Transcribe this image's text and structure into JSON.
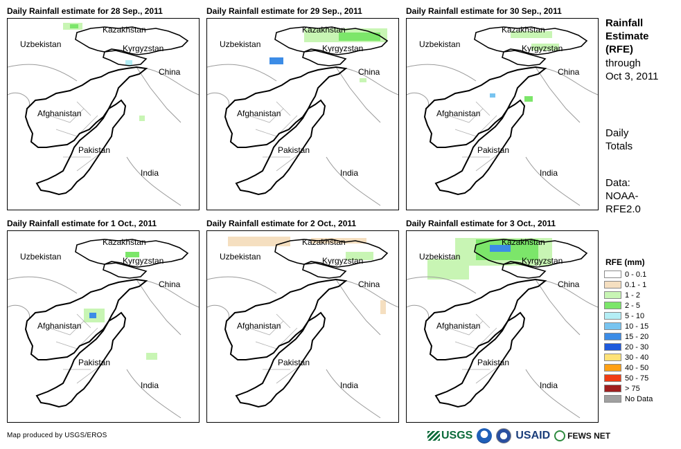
{
  "panels": [
    {
      "title": "Daily Rainfall estimate for 28 Sep., 2011"
    },
    {
      "title": "Daily Rainfall estimate for 29 Sep., 2011"
    },
    {
      "title": "Daily Rainfall estimate for 30 Sep., 2011"
    },
    {
      "title": "Daily Rainfall estimate for 1 Oct., 2011"
    },
    {
      "title": "Daily Rainfall estimate for 2 Oct., 2011"
    },
    {
      "title": "Daily Rainfall estimate for 3 Oct., 2011"
    }
  ],
  "map_labels": {
    "kazakhstan": "Kazakhstan",
    "uzbekistan": "Uzbekistan",
    "kyrgyzstan": "Kyrgyzstan",
    "china": "China",
    "afghanistan": "Afghanistan",
    "pakistan": "Pakistan",
    "india": "India"
  },
  "side": {
    "heading_line1": "Rainfall",
    "heading_line2": "Estimate",
    "heading_line3": "(RFE)",
    "through": "through",
    "date": "Oct 3, 2011",
    "daily1": "Daily",
    "daily2": "Totals",
    "data1": "Data:",
    "data2": "NOAA-",
    "data3": "RFE2.0"
  },
  "legend": {
    "title": "RFE (mm)",
    "items": [
      {
        "label": "0 - 0.1",
        "color": "#ffffff"
      },
      {
        "label": "0.1 - 1",
        "color": "#f5dfc0"
      },
      {
        "label": "1 - 2",
        "color": "#c8f5b4"
      },
      {
        "label": "2 - 5",
        "color": "#7ce66a"
      },
      {
        "label": "5 - 10",
        "color": "#b4eef5"
      },
      {
        "label": "10 - 15",
        "color": "#78c4f0"
      },
      {
        "label": "15 - 20",
        "color": "#3c8ce6"
      },
      {
        "label": "20 - 30",
        "color": "#1e5adc"
      },
      {
        "label": "30 - 40",
        "color": "#ffe278"
      },
      {
        "label": "40 - 50",
        "color": "#ffa014"
      },
      {
        "label": "50 - 75",
        "color": "#f03c14"
      },
      {
        "label": "> 75",
        "color": "#a01e1e"
      },
      {
        "label": "No Data",
        "color": "#a0a0a0"
      }
    ]
  },
  "footer": {
    "credit": "Map produced by USGS/EROS",
    "logo_usgs": "USGS",
    "logo_usaid": "USAID",
    "logo_fews": "FEWS NET"
  }
}
